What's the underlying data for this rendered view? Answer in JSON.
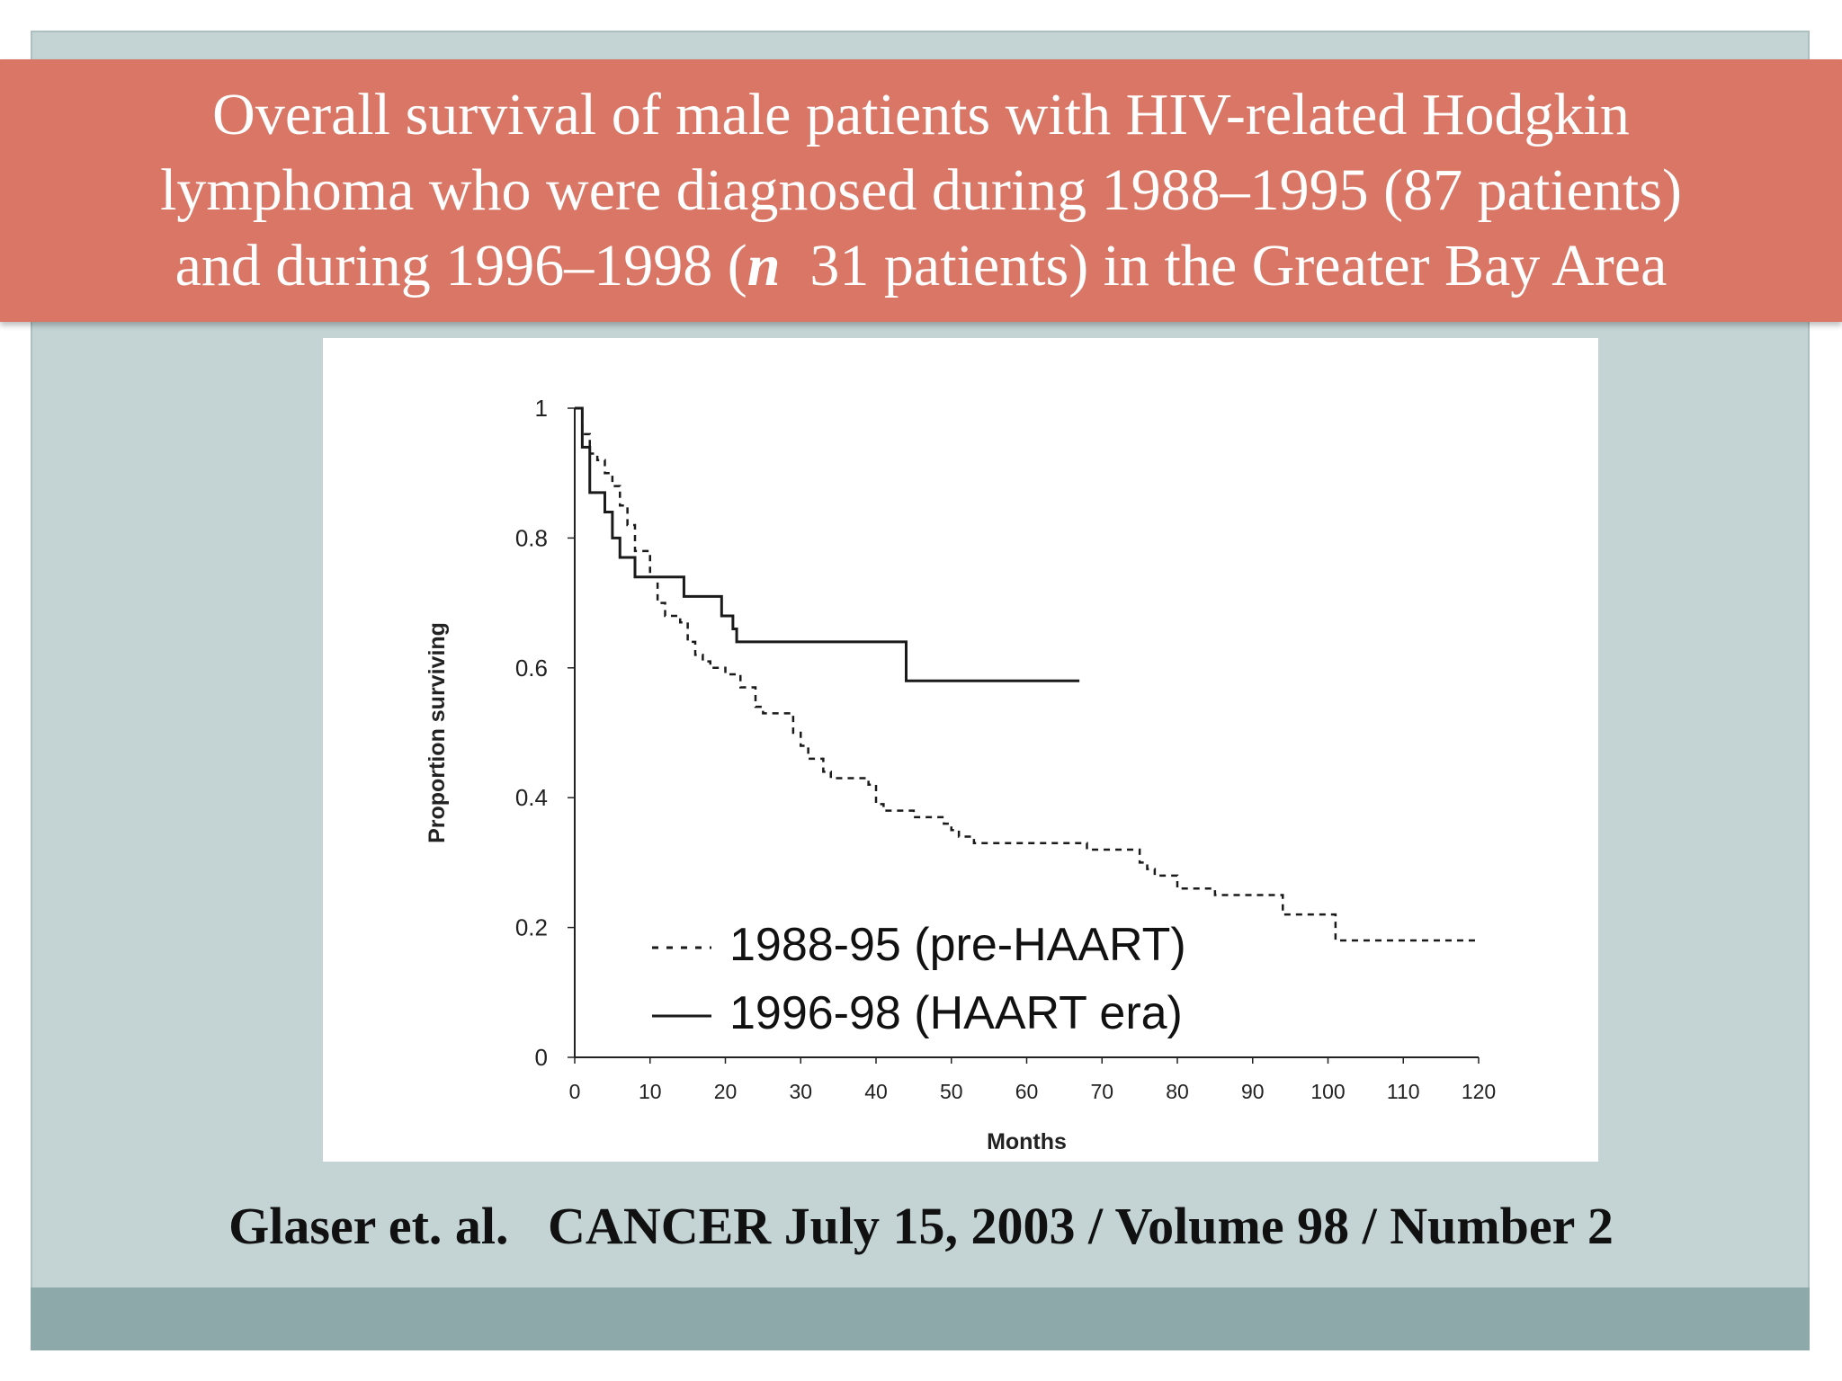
{
  "slide": {
    "title_line1": "Overall survival of male patients with HIV-related Hodgkin",
    "title_line2": "lymphoma who were diagnosed during 1988–1995 (87 patients)",
    "title_line3_a": "and during 1996–1998 (",
    "title_line3_n": "n",
    "title_line3_b": "  31 patients) in the Greater Bay Area",
    "citation": "Glaser et. al.   CANCER July 15, 2003 / Volume 98 / Number 2",
    "colors": {
      "banner": "#d97665",
      "panel": "#c4d4d5",
      "bottom_bar": "#8ea9aa"
    }
  },
  "chart_data": {
    "type": "line",
    "title": "",
    "xlabel": "Months",
    "ylabel": "Proportion surviving",
    "xlim": [
      0,
      120
    ],
    "ylim": [
      0,
      1
    ],
    "x_ticks": [
      "0",
      "10",
      "20",
      "30",
      "40",
      "50",
      "60",
      "70",
      "80",
      "90",
      "100",
      "110",
      "120"
    ],
    "y_ticks": [
      "0",
      "0.2",
      "0.4",
      "0.6",
      "0.8",
      "1"
    ],
    "grid": false,
    "legend_position": "bottom-left",
    "series": [
      {
        "name": "1988-95 (pre-HAART)",
        "style": "dashed",
        "points": [
          [
            0,
            1
          ],
          [
            1,
            0.96
          ],
          [
            2,
            0.93
          ],
          [
            3,
            0.92
          ],
          [
            4,
            0.9
          ],
          [
            5,
            0.88
          ],
          [
            6,
            0.85
          ],
          [
            7,
            0.82
          ],
          [
            8,
            0.78
          ],
          [
            10,
            0.74
          ],
          [
            11,
            0.7
          ],
          [
            12,
            0.68
          ],
          [
            14,
            0.67
          ],
          [
            15,
            0.64
          ],
          [
            16,
            0.62
          ],
          [
            17,
            0.61
          ],
          [
            18,
            0.6
          ],
          [
            20,
            0.59
          ],
          [
            22,
            0.57
          ],
          [
            24,
            0.54
          ],
          [
            25,
            0.53
          ],
          [
            28,
            0.53
          ],
          [
            29,
            0.5
          ],
          [
            30,
            0.48
          ],
          [
            31,
            0.46
          ],
          [
            33,
            0.44
          ],
          [
            34,
            0.43
          ],
          [
            38,
            0.43
          ],
          [
            39,
            0.42
          ],
          [
            40,
            0.39
          ],
          [
            41,
            0.38
          ],
          [
            44,
            0.38
          ],
          [
            45,
            0.37
          ],
          [
            48,
            0.37
          ],
          [
            49,
            0.36
          ],
          [
            50,
            0.35
          ],
          [
            51,
            0.34
          ],
          [
            53,
            0.33
          ],
          [
            67,
            0.33
          ],
          [
            68,
            0.32
          ],
          [
            74,
            0.32
          ],
          [
            75,
            0.3
          ],
          [
            76,
            0.29
          ],
          [
            77,
            0.28
          ],
          [
            79,
            0.28
          ],
          [
            80,
            0.26
          ],
          [
            84,
            0.26
          ],
          [
            85,
            0.25
          ],
          [
            93,
            0.25
          ],
          [
            94,
            0.22
          ],
          [
            100,
            0.22
          ],
          [
            101,
            0.18
          ],
          [
            120,
            0.18
          ]
        ]
      },
      {
        "name": "1996-98 (HAART era)",
        "style": "solid",
        "points": [
          [
            0,
            1
          ],
          [
            1,
            0.94
          ],
          [
            2,
            0.87
          ],
          [
            4,
            0.84
          ],
          [
            5,
            0.8
          ],
          [
            6,
            0.77
          ],
          [
            8,
            0.74
          ],
          [
            14,
            0.74
          ],
          [
            14.5,
            0.71
          ],
          [
            19,
            0.71
          ],
          [
            19.5,
            0.68
          ],
          [
            21,
            0.66
          ],
          [
            21.5,
            0.64
          ],
          [
            43,
            0.64
          ],
          [
            44,
            0.58
          ],
          [
            67,
            0.58
          ]
        ]
      }
    ]
  }
}
